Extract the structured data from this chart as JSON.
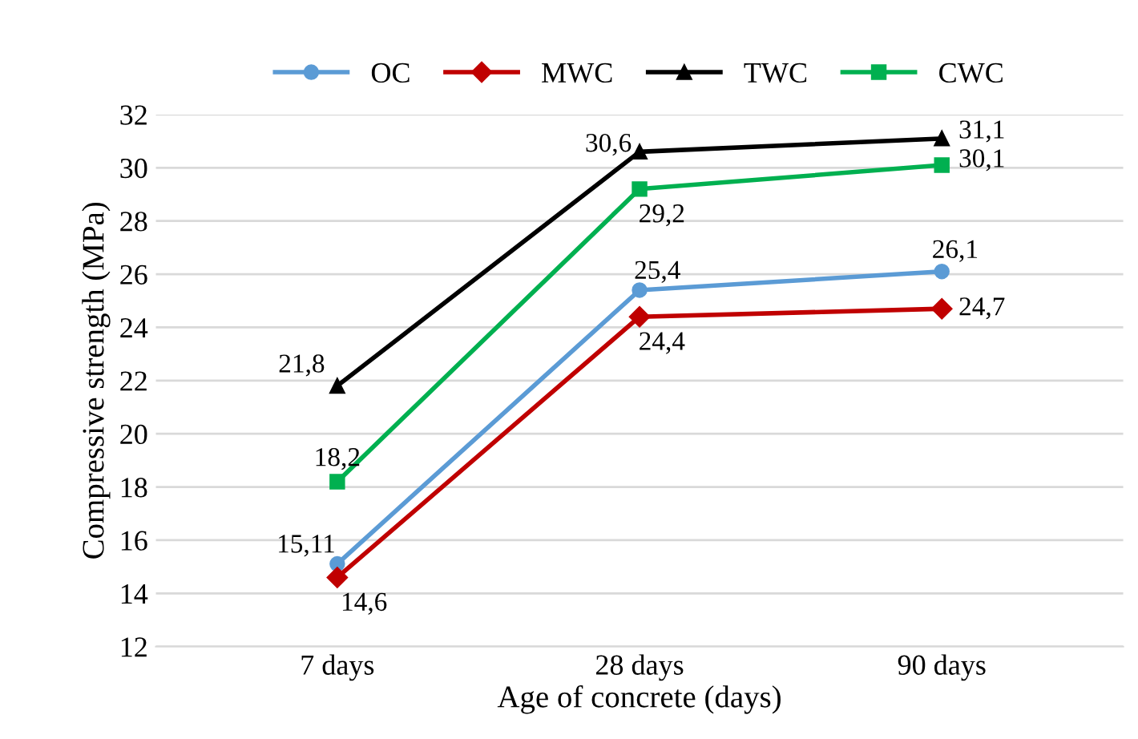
{
  "chart_data": {
    "type": "line",
    "xlabel": "Age of concrete (days)",
    "ylabel": "Compressive strength (MPa)",
    "categories": [
      "7 days",
      "28 days",
      "90 days"
    ],
    "series": [
      {
        "name": "OC",
        "color": "#5b9bd5",
        "marker": "circle",
        "values": [
          15.11,
          25.4,
          26.1
        ],
        "value_labels": [
          "15,11",
          "25,4",
          "26,1"
        ]
      },
      {
        "name": "MWC",
        "color": "#c00000",
        "marker": "diamond",
        "values": [
          14.6,
          24.4,
          24.7
        ],
        "value_labels": [
          "14,6",
          "24,4",
          "24,7"
        ]
      },
      {
        "name": "TWC",
        "color": "#000000",
        "marker": "triangle",
        "values": [
          21.8,
          30.6,
          31.1
        ],
        "value_labels": [
          "21,8",
          "30,6",
          "31,1"
        ]
      },
      {
        "name": "CWC",
        "color": "#00b050",
        "marker": "square",
        "values": [
          18.2,
          29.2,
          30.1
        ],
        "value_labels": [
          "18,2",
          "29,2",
          "30,1"
        ]
      }
    ],
    "ylim": [
      12,
      32
    ],
    "yticks": [
      12,
      14,
      16,
      18,
      20,
      22,
      24,
      26,
      28,
      30,
      32
    ],
    "grid": "y",
    "legend": "top"
  }
}
